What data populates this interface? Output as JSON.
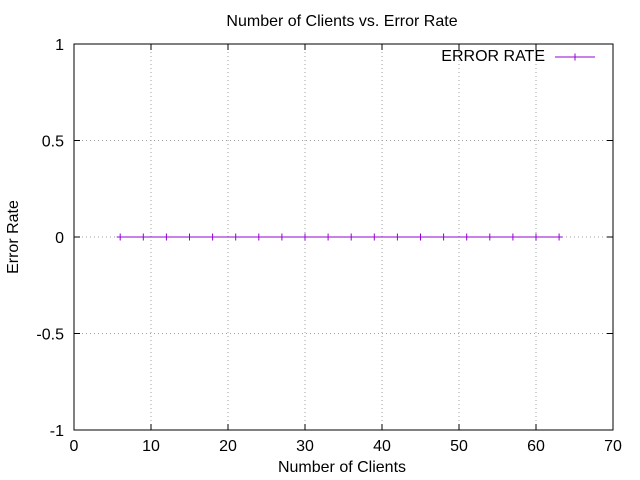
{
  "chart_data": {
    "type": "line",
    "title": "Number of Clients vs. Error Rate",
    "xlabel": "Number of Clients",
    "ylabel": "Error Rate",
    "xlim": [
      0,
      70
    ],
    "ylim": [
      -1,
      1
    ],
    "x_ticks": [
      0,
      10,
      20,
      30,
      40,
      50,
      60,
      70
    ],
    "y_ticks": [
      -1,
      -0.5,
      0,
      0.5,
      1
    ],
    "grid": true,
    "legend_position": "top-right",
    "series": [
      {
        "name": "ERROR RATE",
        "color": "#9400d3",
        "marker": "plus",
        "x": [
          6,
          9,
          12,
          15,
          18,
          21,
          24,
          27,
          30,
          33,
          36,
          39,
          42,
          45,
          48,
          51,
          54,
          57,
          60,
          63
        ],
        "y": [
          0,
          0,
          0,
          0,
          0,
          0,
          0,
          0,
          0,
          0,
          0,
          0,
          0,
          0,
          0,
          0,
          0,
          0,
          0,
          0
        ]
      }
    ]
  }
}
